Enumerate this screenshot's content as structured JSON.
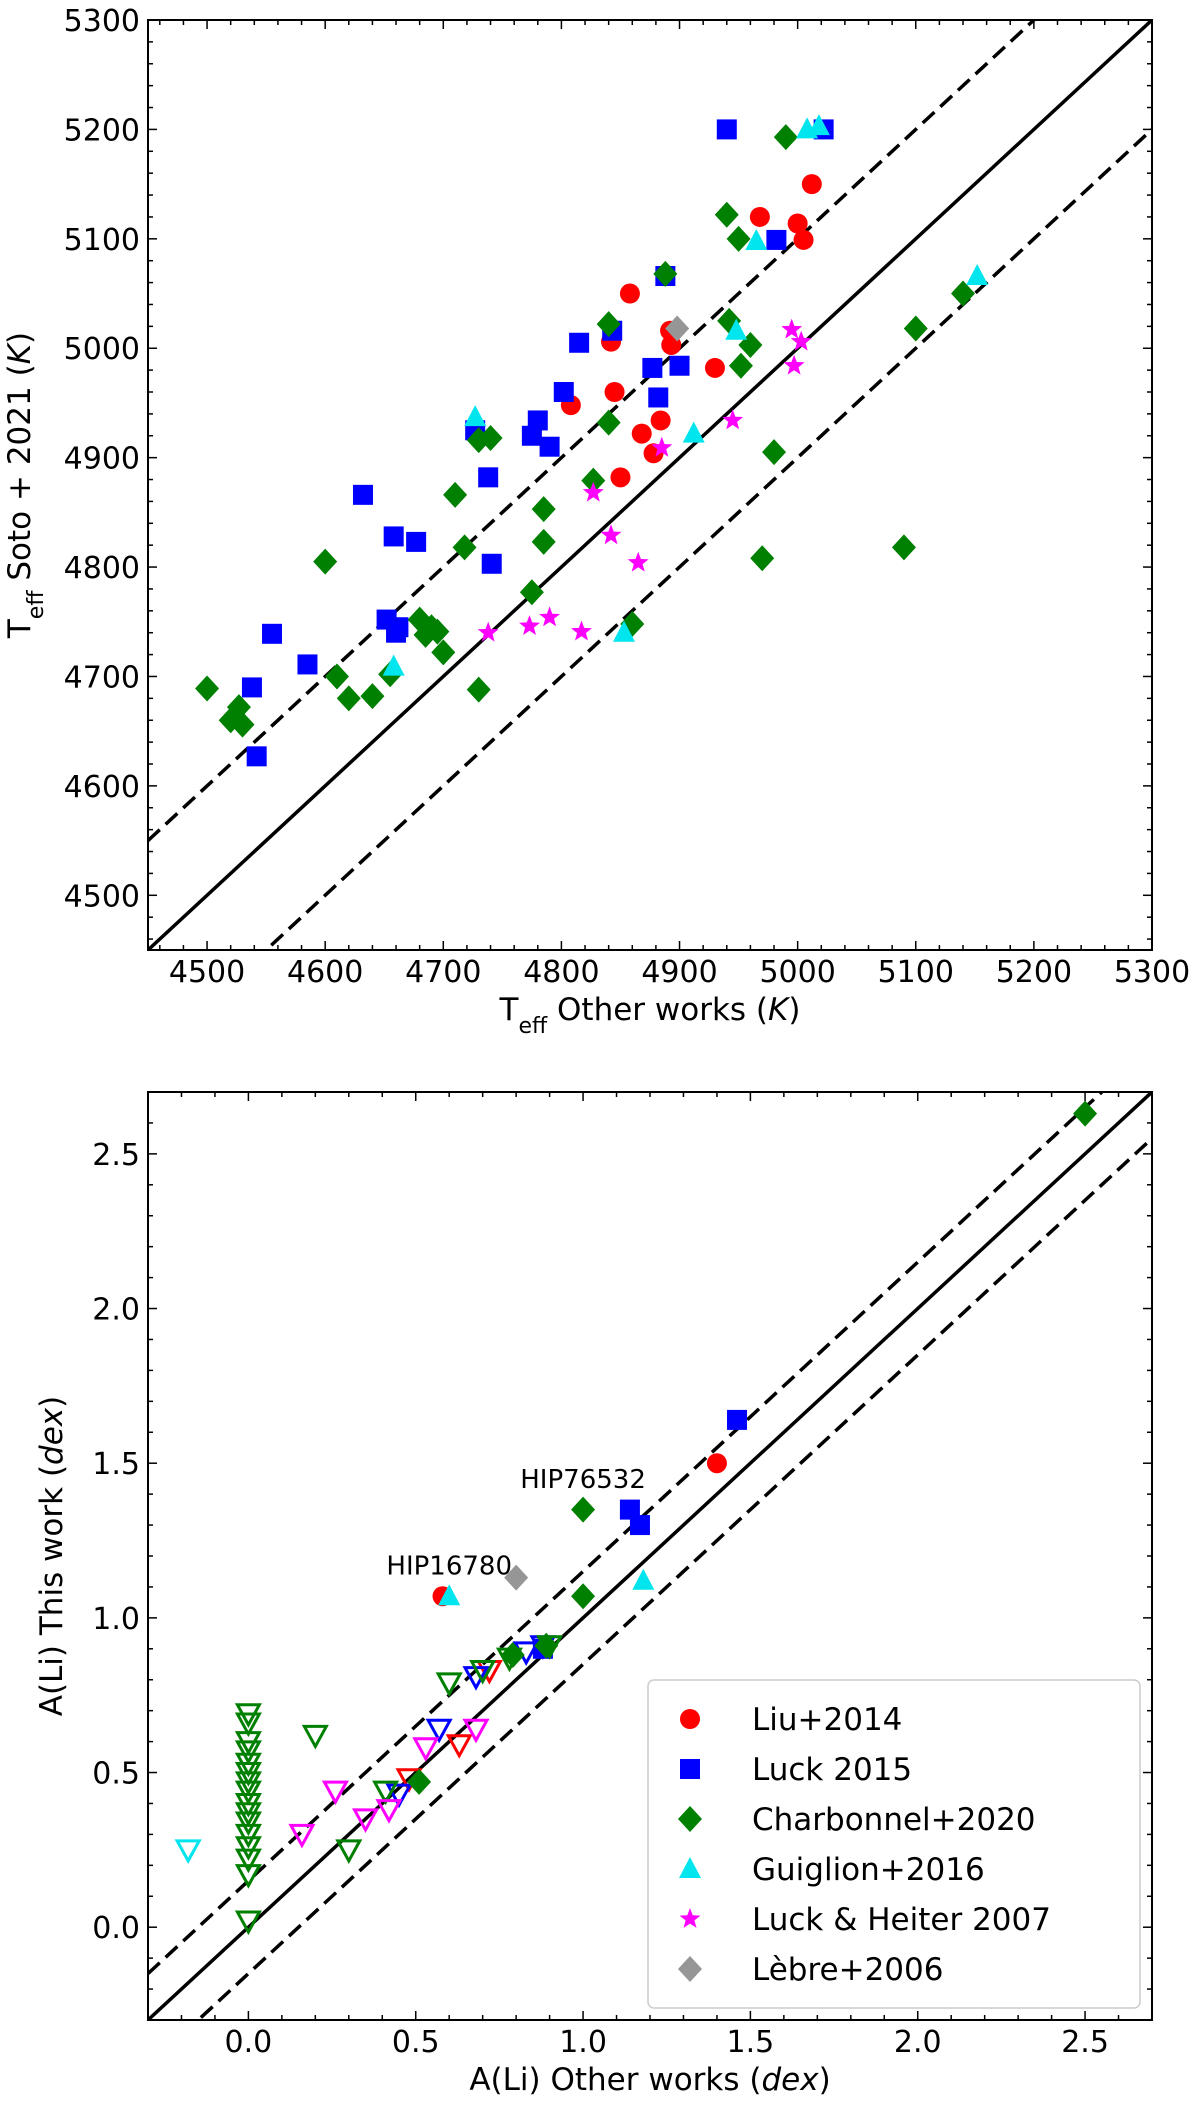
{
  "chart_data": [
    {
      "type": "scatter",
      "title": "",
      "xlabel": {
        "main": "T",
        "sub": "eff",
        "rest": " Other works (",
        "unit": "K",
        "close": ")"
      },
      "ylabel": {
        "main": "T",
        "sub": "eff",
        "rest": " Soto + 2021 (",
        "unit": "K",
        "close": ")"
      },
      "xlim": [
        4450,
        5300
      ],
      "ylim": [
        4450,
        5300
      ],
      "xticks": [
        4500,
        4600,
        4700,
        4800,
        4900,
        5000,
        5100,
        5200,
        5300
      ],
      "yticks": [
        4500,
        4600,
        4700,
        4800,
        4900,
        5000,
        5100,
        5200,
        5300
      ],
      "grid": false,
      "reference_lines": [
        {
          "name": "one-to-one",
          "offset": 0,
          "style": "solid"
        },
        {
          "name": "upper-offset",
          "offset": 100,
          "style": "dashed"
        },
        {
          "name": "lower-offset",
          "offset": -100,
          "style": "dashed"
        }
      ],
      "series": [
        {
          "name": "Liu+2014",
          "marker": "circle",
          "color": "#ff0000",
          "points": [
            [
              4808,
              4948
            ],
            [
              4842,
              5006
            ],
            [
              4845,
              4960
            ],
            [
              4850,
              4882
            ],
            [
              4858,
              5050
            ],
            [
              4868,
              4922
            ],
            [
              4878,
              4904
            ],
            [
              4884,
              4934
            ],
            [
              4892,
              5016
            ],
            [
              4893,
              5003
            ],
            [
              4930,
              4982
            ],
            [
              4968,
              5120
            ],
            [
              5000,
              5114
            ],
            [
              5005,
              5099
            ],
            [
              5012,
              5150
            ]
          ]
        },
        {
          "name": "Luck 2015",
          "marker": "square",
          "color": "#0000ff",
          "points": [
            [
              4538,
              4690
            ],
            [
              4542,
              4627
            ],
            [
              4555,
              4739
            ],
            [
              4585,
              4711
            ],
            [
              4632,
              4866
            ],
            [
              4652,
              4752
            ],
            [
              4658,
              4828
            ],
            [
              4660,
              4740
            ],
            [
              4662,
              4745
            ],
            [
              4677,
              4823
            ],
            [
              4727,
              4925
            ],
            [
              4738,
              4882
            ],
            [
              4741,
              4803
            ],
            [
              4775,
              4920
            ],
            [
              4780,
              4934
            ],
            [
              4790,
              4910
            ],
            [
              4802,
              4960
            ],
            [
              4815,
              5005
            ],
            [
              4843,
              5016
            ],
            [
              4877,
              4982
            ],
            [
              4882,
              4955
            ],
            [
              4888,
              5066
            ],
            [
              4900,
              4984
            ],
            [
              4940,
              5200
            ],
            [
              4982,
              5099
            ],
            [
              5022,
              5200
            ]
          ]
        },
        {
          "name": "Charbonnel+2020",
          "marker": "diamond",
          "color": "#008000",
          "points": [
            [
              4500,
              4689
            ],
            [
              4520,
              4660
            ],
            [
              4527,
              4672
            ],
            [
              4530,
              4656
            ],
            [
              4600,
              4805
            ],
            [
              4610,
              4700
            ],
            [
              4620,
              4680
            ],
            [
              4640,
              4682
            ],
            [
              4655,
              4702
            ],
            [
              4680,
              4752
            ],
            [
              4685,
              4738
            ],
            [
              4690,
              4745
            ],
            [
              4695,
              4741
            ],
            [
              4700,
              4722
            ],
            [
              4710,
              4866
            ],
            [
              4718,
              4818
            ],
            [
              4730,
              4688
            ],
            [
              4730,
              4916
            ],
            [
              4740,
              4918
            ],
            [
              4775,
              4777
            ],
            [
              4785,
              4853
            ],
            [
              4785,
              4823
            ],
            [
              4827,
              4879
            ],
            [
              4840,
              5022
            ],
            [
              4840,
              4932
            ],
            [
              4860,
              4748
            ],
            [
              4888,
              5068
            ],
            [
              4940,
              5122
            ],
            [
              4942,
              5025
            ],
            [
              4950,
              5100
            ],
            [
              4952,
              4984
            ],
            [
              4960,
              5003
            ],
            [
              4970,
              4808
            ],
            [
              4980,
              4905
            ],
            [
              4990,
              5193
            ],
            [
              5090,
              4818
            ],
            [
              5100,
              5018
            ],
            [
              5140,
              5050
            ]
          ]
        },
        {
          "name": "Guiglion+2016",
          "marker": "triangle",
          "color": "#00e5ee",
          "points": [
            [
              4658,
              4709
            ],
            [
              4727,
              4937
            ],
            [
              4853,
              4740
            ],
            [
              4912,
              4922
            ],
            [
              4948,
              5016
            ],
            [
              4965,
              5098
            ],
            [
              5008,
              5200
            ],
            [
              5018,
              5203
            ],
            [
              5152,
              5066
            ]
          ]
        },
        {
          "name": "Luck & Heiter 2007",
          "marker": "star",
          "color": "#ff00ff",
          "points": [
            [
              4738,
              4740
            ],
            [
              4773,
              4746
            ],
            [
              4790,
              4754
            ],
            [
              4817,
              4741
            ],
            [
              4827,
              4868
            ],
            [
              4842,
              4829
            ],
            [
              4865,
              4804
            ],
            [
              4885,
              4909
            ],
            [
              4945,
              4934
            ],
            [
              4995,
              5017
            ],
            [
              4997,
              4984
            ],
            [
              5003,
              5006
            ]
          ]
        },
        {
          "name": "Lèbre+2006",
          "marker": "diamond",
          "color": "#969696",
          "points": [
            [
              4898,
              5018
            ]
          ]
        }
      ],
      "legend": null
    },
    {
      "type": "scatter",
      "title": "",
      "xlabel": {
        "main": "A(Li) Other works (",
        "unit": "dex",
        "close": ")"
      },
      "ylabel": {
        "main": "A(Li) This work (",
        "unit": "dex",
        "close": ")"
      },
      "xlim": [
        -0.3,
        2.7
      ],
      "ylim": [
        -0.3,
        2.7
      ],
      "xticks": [
        0.0,
        0.5,
        1.0,
        1.5,
        2.0,
        2.5
      ],
      "xtick_labels": [
        "0.0",
        "0.5",
        "1.0",
        "1.5",
        "2.0",
        "2.5"
      ],
      "yticks": [
        0.0,
        0.5,
        1.0,
        1.5,
        2.0,
        2.5
      ],
      "ytick_labels": [
        "0.0",
        "0.5",
        "1.0",
        "1.5",
        "2.0",
        "2.5"
      ],
      "grid": false,
      "reference_lines": [
        {
          "name": "one-to-one",
          "offset": 0,
          "style": "solid"
        },
        {
          "name": "upper-offset",
          "offset": 0.15,
          "style": "dashed"
        },
        {
          "name": "lower-offset",
          "offset": -0.15,
          "style": "dashed"
        }
      ],
      "annotations": [
        {
          "text": "HIP76532",
          "x": 1.0,
          "y": 1.42
        },
        {
          "text": "HIP16780",
          "x": 0.6,
          "y": 1.14
        }
      ],
      "series": [
        {
          "name": "Liu+2014",
          "marker": "circle",
          "color": "#ff0000",
          "points": [
            [
              0.58,
              1.07
            ],
            [
              1.4,
              1.5
            ]
          ]
        },
        {
          "name": "Liu+2014 upper limits",
          "marker": "triangle-down-open",
          "color": "#ff0000",
          "points": [
            [
              0.48,
              0.48
            ],
            [
              0.63,
              0.59
            ],
            [
              0.72,
              0.83
            ]
          ]
        },
        {
          "name": "Luck 2015",
          "marker": "square",
          "color": "#0000ff",
          "points": [
            [
              0.88,
              0.9
            ],
            [
              1.14,
              1.35
            ],
            [
              1.17,
              1.3
            ],
            [
              1.46,
              1.64
            ]
          ]
        },
        {
          "name": "Luck 2015 upper limits",
          "marker": "triangle-down-open",
          "color": "#0000ff",
          "points": [
            [
              0.45,
              0.43
            ],
            [
              0.57,
              0.64
            ],
            [
              0.68,
              0.81
            ],
            [
              0.83,
              0.89
            ],
            [
              0.88,
              0.91
            ]
          ]
        },
        {
          "name": "Charbonnel+2020",
          "marker": "diamond",
          "color": "#008000",
          "points": [
            [
              0.51,
              0.47
            ],
            [
              0.79,
              0.88
            ],
            [
              0.89,
              0.91
            ],
            [
              1.0,
              1.35
            ],
            [
              1.0,
              1.07
            ],
            [
              2.5,
              2.63
            ]
          ]
        },
        {
          "name": "Charbonnel+2020 upper limits",
          "marker": "triangle-down-open",
          "color": "#008000",
          "points": [
            [
              0.0,
              0.02
            ],
            [
              0.0,
              0.17
            ],
            [
              0.0,
              0.22
            ],
            [
              0.0,
              0.26
            ],
            [
              0.0,
              0.3
            ],
            [
              0.0,
              0.34
            ],
            [
              0.0,
              0.37
            ],
            [
              0.0,
              0.4
            ],
            [
              0.0,
              0.44
            ],
            [
              0.0,
              0.47
            ],
            [
              0.0,
              0.5
            ],
            [
              0.0,
              0.53
            ],
            [
              0.0,
              0.57
            ],
            [
              0.0,
              0.6
            ],
            [
              0.0,
              0.66
            ],
            [
              0.0,
              0.69
            ],
            [
              0.2,
              0.62
            ],
            [
              0.3,
              0.25
            ],
            [
              0.41,
              0.44
            ],
            [
              0.6,
              0.79
            ],
            [
              0.7,
              0.83
            ],
            [
              0.78,
              0.87
            ],
            [
              0.9,
              0.91
            ]
          ]
        },
        {
          "name": "Guiglion+2016",
          "marker": "triangle",
          "color": "#00e5ee",
          "points": [
            [
              0.6,
              1.07
            ],
            [
              1.18,
              1.12
            ]
          ]
        },
        {
          "name": "Guiglion+2016 upper limits",
          "marker": "triangle-down-open",
          "color": "#00e5ee",
          "points": [
            [
              -0.18,
              0.25
            ]
          ]
        },
        {
          "name": "Luck & Heiter 2007 upper limits",
          "marker": "triangle-down-open",
          "color": "#ff00ff",
          "points": [
            [
              0.16,
              0.3
            ],
            [
              0.26,
              0.44
            ],
            [
              0.35,
              0.35
            ],
            [
              0.42,
              0.38
            ],
            [
              0.53,
              0.58
            ],
            [
              0.68,
              0.64
            ]
          ]
        },
        {
          "name": "Lèbre+2006",
          "marker": "diamond",
          "color": "#969696",
          "points": [
            [
              0.8,
              1.13
            ]
          ]
        }
      ],
      "legend": {
        "placement": "bottom-right",
        "entries": [
          {
            "label": "Liu+2014",
            "marker": "circle",
            "color": "#ff0000"
          },
          {
            "label": "Luck 2015",
            "marker": "square",
            "color": "#0000ff"
          },
          {
            "label": "Charbonnel+2020",
            "marker": "diamond",
            "color": "#008000"
          },
          {
            "label": "Guiglion+2016",
            "marker": "triangle",
            "color": "#00e5ee"
          },
          {
            "label": "Luck & Heiter 2007",
            "marker": "star",
            "color": "#ff00ff"
          },
          {
            "label": "Lèbre+2006",
            "marker": "diamond",
            "color": "#969696"
          }
        ]
      }
    }
  ]
}
